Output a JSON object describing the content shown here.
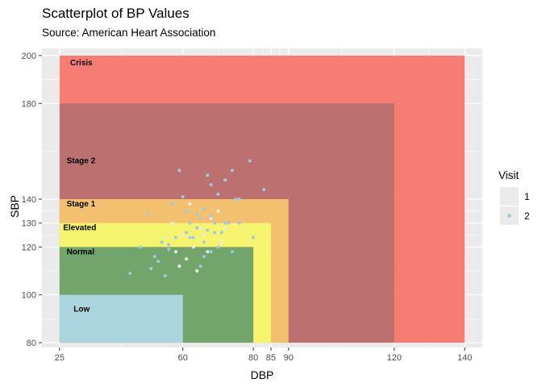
{
  "title": "Scatterplot of BP Values",
  "subtitle": "Source: American Heart Association",
  "legend": {
    "title": "Visit",
    "items": [
      {
        "label": "1",
        "color": "#ebebeb"
      },
      {
        "label": "2",
        "color": "#9ecae1"
      }
    ]
  },
  "chart_data": {
    "type": "scatter",
    "xlabel": "DBP",
    "ylabel": "SBP",
    "xlim": [
      20,
      145
    ],
    "ylim": [
      78,
      203
    ],
    "x_ticks": [
      25,
      60,
      80,
      85,
      90,
      120,
      140
    ],
    "y_ticks": [
      80,
      100,
      120,
      130,
      140,
      180,
      200
    ],
    "grid": true,
    "legend_position": "right",
    "regions": [
      {
        "label": "Crisis",
        "dbp_max": 140,
        "sbp_max": 200,
        "color": "#f8766d"
      },
      {
        "label": "Stage 2",
        "dbp_max": 120,
        "sbp_max": 180,
        "color": "#b8706f"
      },
      {
        "label": "Stage 1",
        "dbp_max": 90,
        "sbp_max": 140,
        "color": "#f5c46f"
      },
      {
        "label": "Elevated",
        "dbp_max": 85,
        "sbp_max": 130,
        "color": "#f5f56f"
      },
      {
        "label": "Normal",
        "dbp_max": 80,
        "sbp_max": 120,
        "color": "#6a9f6a"
      },
      {
        "label": "Low",
        "dbp_max": 60,
        "sbp_max": 100,
        "color": "#add8e6"
      }
    ],
    "series": [
      {
        "name": "1",
        "color": "#ebebeb",
        "points": [
          [
            61,
            115
          ],
          [
            64,
            110
          ],
          [
            58,
            118
          ],
          [
            66,
            125
          ],
          [
            62,
            138
          ],
          [
            65,
            128
          ],
          [
            70,
            135
          ],
          [
            55,
            124
          ],
          [
            57,
            130
          ],
          [
            63,
            120
          ],
          [
            68,
            132
          ],
          [
            72,
            128
          ],
          [
            60,
            125
          ],
          [
            67,
            118
          ],
          [
            71,
            122
          ],
          [
            59,
            112
          ]
        ]
      },
      {
        "name": "2",
        "color": "#9ecae1",
        "points": [
          [
            59,
            152
          ],
          [
            68,
            146
          ],
          [
            67,
            150
          ],
          [
            74,
            152
          ],
          [
            72,
            148
          ],
          [
            79,
            156
          ],
          [
            70,
            142
          ],
          [
            76,
            140
          ],
          [
            83,
            144
          ],
          [
            57,
            138
          ],
          [
            65,
            132
          ],
          [
            61,
            126
          ],
          [
            64,
            134
          ],
          [
            69,
            130
          ],
          [
            73,
            130
          ],
          [
            50,
            134
          ],
          [
            54,
            122
          ],
          [
            52,
            116
          ],
          [
            56,
            119
          ],
          [
            48,
            120
          ],
          [
            62,
            124
          ],
          [
            66,
            122
          ],
          [
            70,
            120
          ],
          [
            68,
            118
          ],
          [
            74,
            118
          ],
          [
            75,
            140
          ],
          [
            80,
            124
          ],
          [
            45,
            109
          ],
          [
            51,
            111
          ],
          [
            55,
            108
          ],
          [
            66,
            116
          ],
          [
            64,
            128
          ],
          [
            60,
            141
          ],
          [
            63,
            124
          ],
          [
            67,
            127
          ],
          [
            71,
            126
          ],
          [
            58,
            124
          ],
          [
            62,
            130
          ],
          [
            68,
            133
          ],
          [
            65,
            112
          ],
          [
            69,
            126
          ],
          [
            61,
            135
          ],
          [
            66,
            136
          ],
          [
            72,
            130
          ],
          [
            76,
            130
          ],
          [
            56,
            121
          ],
          [
            53,
            114
          ]
        ]
      }
    ]
  }
}
